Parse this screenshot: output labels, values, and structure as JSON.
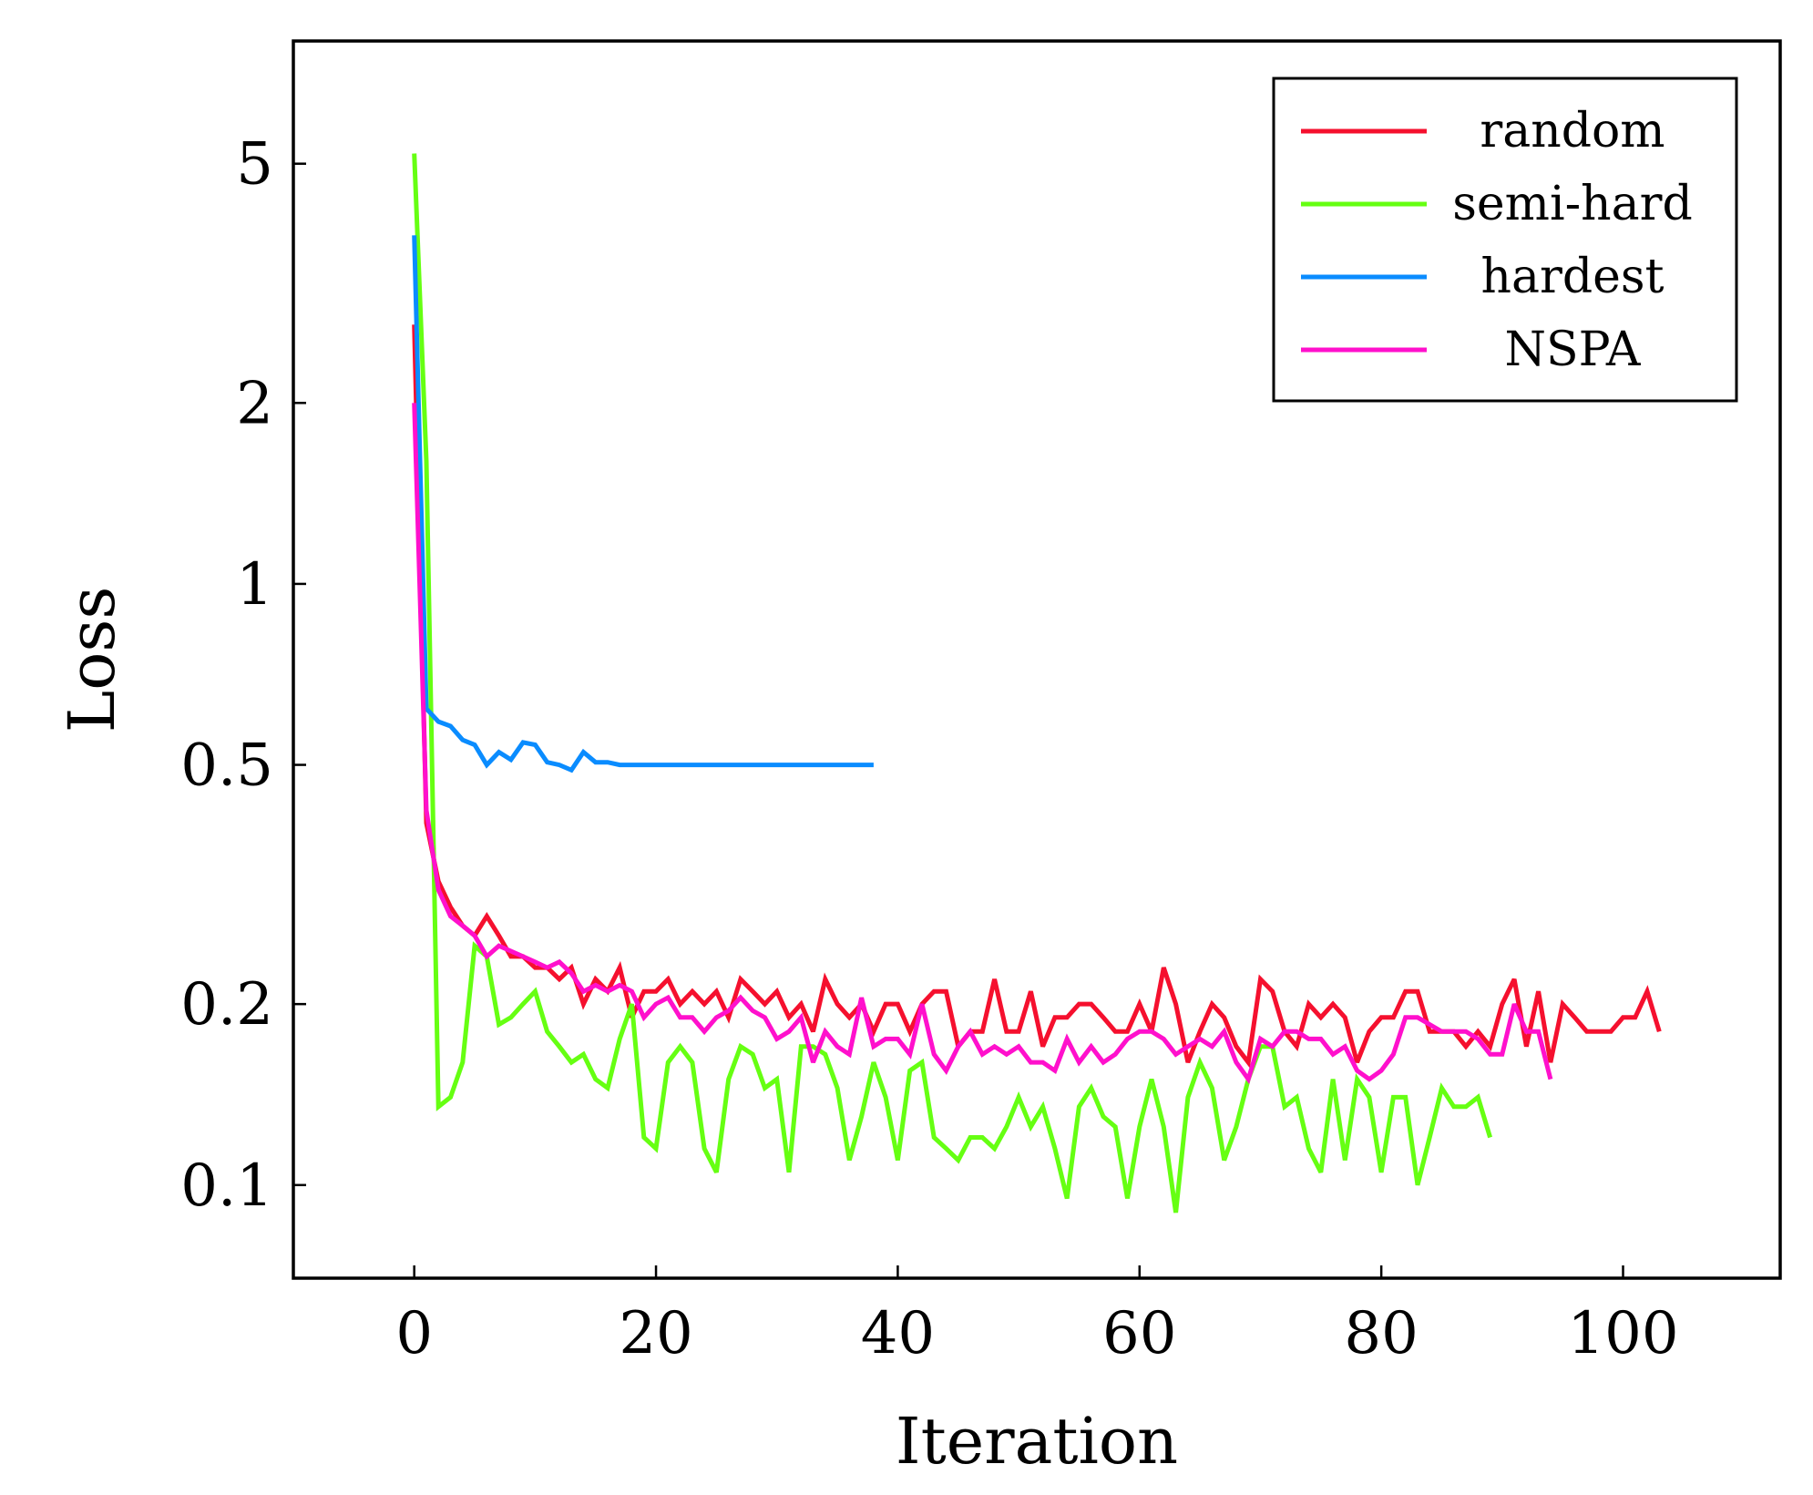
{
  "chart_data": {
    "type": "line",
    "title": "",
    "xlabel": "Iteration",
    "ylabel": "Loss",
    "xlim": [
      -10,
      113
    ],
    "ylim": [
      0.07,
      8
    ],
    "yscale": "log",
    "grid": false,
    "legend_position": "top-right",
    "x_ticks": [
      0,
      20,
      40,
      60,
      80,
      100
    ],
    "x_tick_labels": [
      "0",
      "20",
      "40",
      "60",
      "80",
      "100"
    ],
    "y_ticks": [
      0.1,
      0.2,
      0.5,
      1,
      2,
      5
    ],
    "y_tick_labels": [
      "0.1",
      "0.2",
      "0.5",
      "1",
      "2",
      "5"
    ],
    "series": [
      {
        "name": "random",
        "color": "#f5102e",
        "x_start": 0,
        "values": [
          2.7,
          0.4,
          0.32,
          0.29,
          0.27,
          0.26,
          0.28,
          0.26,
          0.24,
          0.24,
          0.23,
          0.23,
          0.22,
          0.23,
          0.2,
          0.22,
          0.21,
          0.23,
          0.19,
          0.21,
          0.21,
          0.22,
          0.2,
          0.21,
          0.2,
          0.21,
          0.19,
          0.22,
          0.21,
          0.2,
          0.21,
          0.19,
          0.2,
          0.18,
          0.22,
          0.2,
          0.19,
          0.2,
          0.18,
          0.2,
          0.2,
          0.18,
          0.2,
          0.21,
          0.21,
          0.17,
          0.18,
          0.18,
          0.22,
          0.18,
          0.18,
          0.21,
          0.17,
          0.19,
          0.19,
          0.2,
          0.2,
          0.19,
          0.18,
          0.18,
          0.2,
          0.18,
          0.23,
          0.2,
          0.16,
          0.18,
          0.2,
          0.19,
          0.17,
          0.16,
          0.22,
          0.21,
          0.18,
          0.17,
          0.2,
          0.19,
          0.2,
          0.19,
          0.16,
          0.18,
          0.19,
          0.19,
          0.21,
          0.21,
          0.18,
          0.18,
          0.18,
          0.17,
          0.18,
          0.17,
          0.2,
          0.22,
          0.17,
          0.21,
          0.16,
          0.2,
          0.19,
          0.18,
          0.18,
          0.18,
          0.19,
          0.19,
          0.21,
          0.18
        ]
      },
      {
        "name": "semi-hard",
        "color": "#66ff12",
        "x_start": 0,
        "values": [
          5.2,
          1.6,
          0.135,
          0.14,
          0.16,
          0.25,
          0.24,
          0.185,
          0.19,
          0.2,
          0.21,
          0.18,
          0.17,
          0.16,
          0.165,
          0.15,
          0.145,
          0.175,
          0.2,
          0.12,
          0.115,
          0.16,
          0.17,
          0.16,
          0.115,
          0.105,
          0.15,
          0.17,
          0.165,
          0.145,
          0.15,
          0.105,
          0.17,
          0.17,
          0.165,
          0.145,
          0.11,
          0.13,
          0.16,
          0.14,
          0.11,
          0.155,
          0.16,
          0.12,
          0.115,
          0.11,
          0.12,
          0.12,
          0.115,
          0.125,
          0.14,
          0.125,
          0.135,
          0.115,
          0.095,
          0.135,
          0.145,
          0.13,
          0.125,
          0.095,
          0.125,
          0.15,
          0.125,
          0.09,
          0.14,
          0.16,
          0.145,
          0.11,
          0.125,
          0.15,
          0.17,
          0.17,
          0.135,
          0.14,
          0.115,
          0.105,
          0.15,
          0.11,
          0.15,
          0.14,
          0.105,
          0.14,
          0.14,
          0.1,
          0.12,
          0.145,
          0.135,
          0.135,
          0.14,
          0.12
        ]
      },
      {
        "name": "hardest",
        "color": "#0a8cff",
        "x_start": 0,
        "values": [
          3.8,
          0.62,
          0.59,
          0.58,
          0.55,
          0.54,
          0.5,
          0.525,
          0.51,
          0.545,
          0.54,
          0.505,
          0.5,
          0.49,
          0.525,
          0.505,
          0.505,
          0.5,
          0.5,
          0.5,
          0.5,
          0.5,
          0.5,
          0.5,
          0.5,
          0.5,
          0.5,
          0.5,
          0.5,
          0.5,
          0.5,
          0.5,
          0.5,
          0.5,
          0.5,
          0.5,
          0.5,
          0.5,
          0.5
        ]
      },
      {
        "name": "NSPA",
        "color": "#ff10cc",
        "x_start": 0,
        "values": [
          2.0,
          0.42,
          0.31,
          0.28,
          0.27,
          0.26,
          0.24,
          0.25,
          0.245,
          0.24,
          0.235,
          0.23,
          0.235,
          0.225,
          0.21,
          0.215,
          0.21,
          0.215,
          0.21,
          0.19,
          0.2,
          0.205,
          0.19,
          0.19,
          0.18,
          0.19,
          0.195,
          0.205,
          0.195,
          0.19,
          0.175,
          0.18,
          0.19,
          0.16,
          0.18,
          0.17,
          0.165,
          0.205,
          0.17,
          0.175,
          0.175,
          0.165,
          0.2,
          0.165,
          0.155,
          0.17,
          0.18,
          0.165,
          0.17,
          0.165,
          0.17,
          0.16,
          0.16,
          0.155,
          0.175,
          0.16,
          0.17,
          0.16,
          0.165,
          0.175,
          0.18,
          0.18,
          0.175,
          0.165,
          0.17,
          0.175,
          0.17,
          0.18,
          0.16,
          0.15,
          0.175,
          0.17,
          0.18,
          0.18,
          0.175,
          0.175,
          0.165,
          0.17,
          0.155,
          0.15,
          0.155,
          0.165,
          0.19,
          0.19,
          0.185,
          0.18,
          0.18,
          0.18,
          0.175,
          0.165,
          0.165,
          0.2,
          0.18,
          0.18,
          0.15
        ]
      }
    ]
  }
}
